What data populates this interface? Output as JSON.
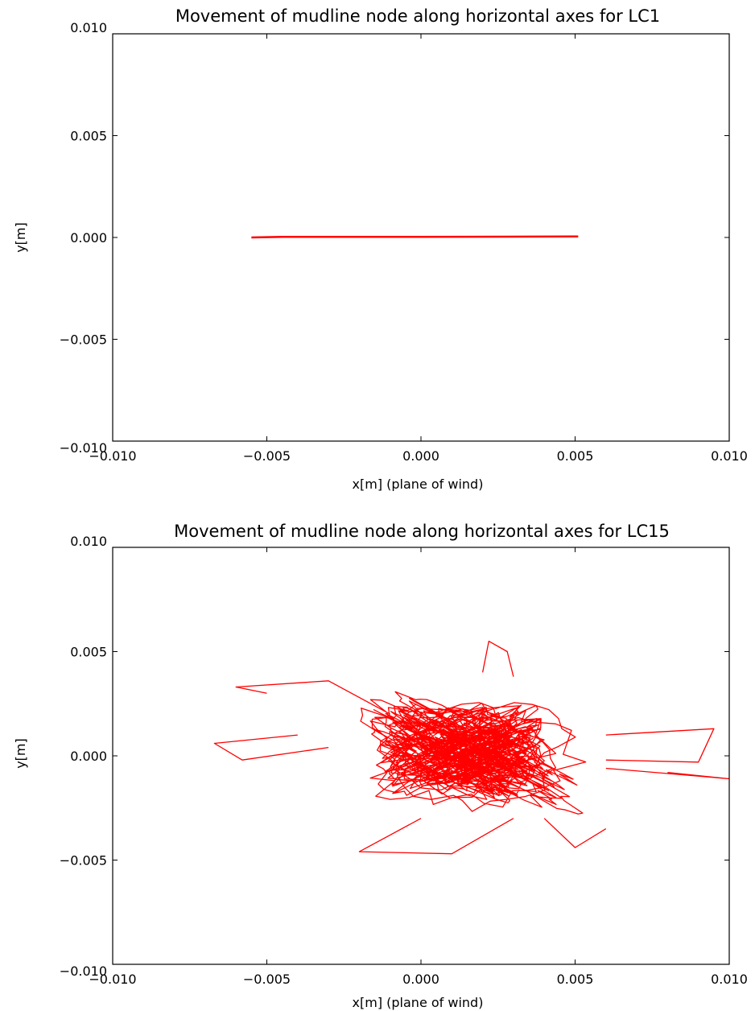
{
  "chart_data": [
    {
      "type": "line",
      "title": "Movement of mudline node along horizontal axes for LC1",
      "xlabel": "x[m] (plane of wind)",
      "ylabel": "y[m]",
      "xlim": [
        -0.01,
        0.01
      ],
      "ylim": [
        -0.01,
        0.01
      ],
      "xticks": [
        "−0.010",
        "−0.005",
        "0.000",
        "0.005",
        "0.010"
      ],
      "yticks": [
        "0.010",
        "0.005",
        "0.000",
        "−0.005",
        "−0.010"
      ],
      "grid": false,
      "color": "#ff0000",
      "series": [
        {
          "x": [
            -0.0055,
            -0.0045,
            0.0,
            0.005,
            0.0051
          ],
          "y": [
            0.0,
            3e-05,
            3e-05,
            5e-05,
            5e-05
          ]
        }
      ]
    },
    {
      "type": "line",
      "title": "Movement of mudline node along horizontal axes for LC15",
      "xlabel": "x[m] (plane of wind)",
      "ylabel": "y[m]",
      "xlim": [
        -0.01,
        0.01
      ],
      "ylim": [
        -0.01,
        0.01
      ],
      "xticks": [
        "−0.010",
        "−0.005",
        "0.000",
        "0.005",
        "0.010"
      ],
      "yticks": [
        "0.010",
        "0.005",
        "0.000",
        "−0.005",
        "−0.010"
      ],
      "grid": false,
      "color": "#ff0000",
      "trajectory": {
        "center": [
          0.0015,
          0.0002
        ],
        "x_extent": [
          -0.0067,
          0.01
        ],
        "y_extent": [
          -0.0047,
          0.0055
        ]
      }
    }
  ]
}
